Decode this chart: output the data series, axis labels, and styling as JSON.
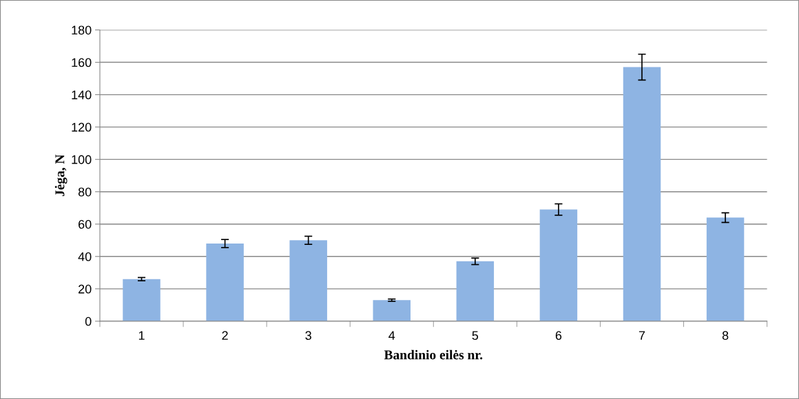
{
  "chart_data": {
    "type": "bar",
    "xlabel": "Bandinio eilės nr.",
    "ylabel": "Jėga, N",
    "categories": [
      "1",
      "2",
      "3",
      "4",
      "5",
      "6",
      "7",
      "8"
    ],
    "values": [
      26,
      48,
      50,
      13,
      37,
      69,
      157,
      64
    ],
    "errors": [
      1,
      2.5,
      2.5,
      0.7,
      2,
      3.5,
      8,
      3
    ],
    "color": "#8eb4e3",
    "ylim": [
      0,
      180
    ],
    "yticks": [
      0,
      20,
      40,
      60,
      80,
      100,
      120,
      140,
      160,
      180
    ],
    "grid": "y",
    "legend": false
  }
}
